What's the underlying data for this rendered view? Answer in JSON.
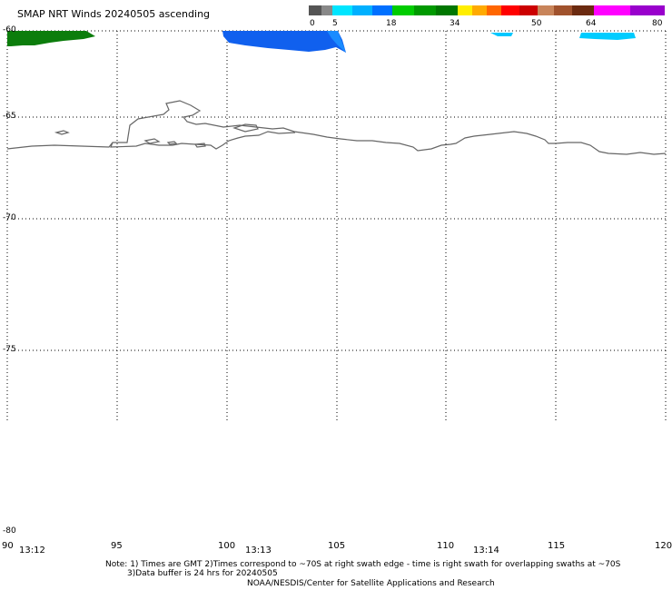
{
  "title": "SMAP NRT Winds 20240505 ascending",
  "colorbar": {
    "ticks": [
      "0",
      "5",
      "18",
      "34",
      "50",
      "64",
      "80"
    ],
    "colors": {
      "calm": "#555555",
      "light": "#00e5ff",
      "moderate": "#0055ff",
      "strong": "#00a000",
      "gale": "#ffd700",
      "storm": "#ff2200",
      "violent": "#8b4513",
      "extreme": "#cc00cc"
    }
  },
  "map": {
    "lat_labels": [
      "-60",
      "-65",
      "-70",
      "-75",
      "-80"
    ],
    "lon_labels": [
      "90",
      "95",
      "100",
      "105",
      "110",
      "115",
      "120"
    ],
    "times": [
      "13:12",
      "13:13",
      "13:14"
    ],
    "coast_color": "#666666",
    "grid": "dotted"
  },
  "notes": {
    "line1": "Note: 1) Times are GMT 2)Times correspond to ~70S at right swath edge - time is right swath for overlapping swaths at ~70S",
    "line2": "3)Data buffer is 24 hrs for 20240505",
    "line3": "NOAA/NESDIS/Center for Satellite Applications and Research"
  }
}
